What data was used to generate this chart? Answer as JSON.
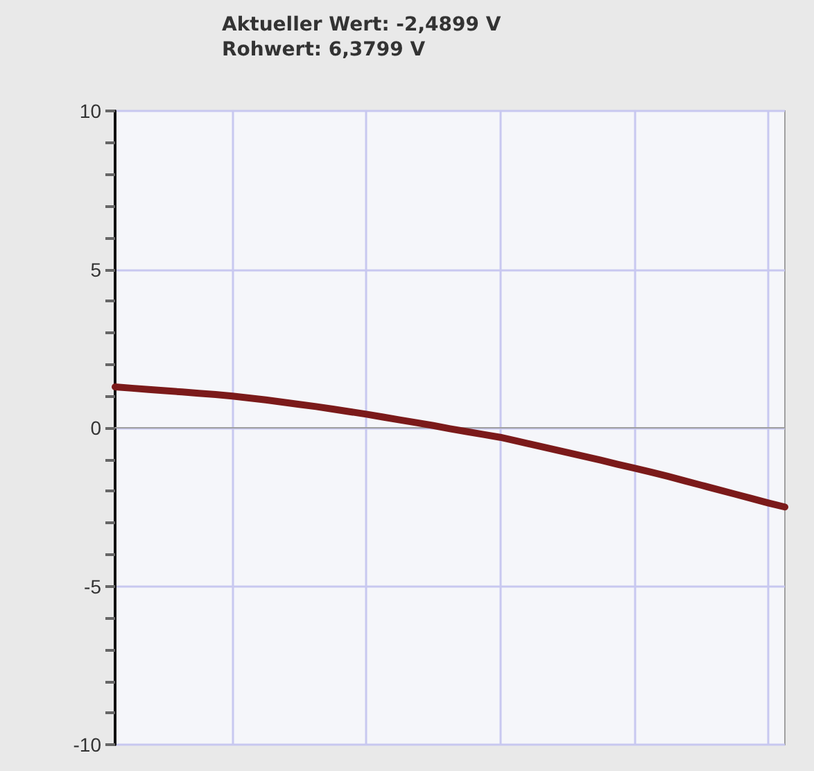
{
  "chart_data": {
    "type": "line",
    "title": "Aktueller Wert: -2,4899 V",
    "subtitle": "Rohwert: 6,3799 V",
    "categories": [
      null,
      null,
      null,
      null,
      null,
      null,
      null,
      null,
      null,
      null,
      null,
      null,
      null,
      null,
      null,
      null,
      null,
      null,
      null,
      null,
      null,
      null,
      null,
      null,
      null,
      null,
      null,
      null,
      null,
      null,
      null,
      null,
      null,
      null,
      null,
      null,
      null,
      null,
      null,
      null,
      null
    ],
    "series": [
      {
        "color": "#7b1a1a",
        "values": [
          1.29,
          1.25,
          1.21,
          1.17,
          1.13,
          1.09,
          1.05,
          1.0,
          0.94,
          0.88,
          0.81,
          0.74,
          0.67,
          0.59,
          0.51,
          0.43,
          0.34,
          0.25,
          0.16,
          0.07,
          -0.03,
          -0.12,
          -0.21,
          -0.3,
          -0.42,
          -0.54,
          -0.66,
          -0.78,
          -0.9,
          -1.02,
          -1.15,
          -1.27,
          -1.4,
          -1.53,
          -1.67,
          -1.81,
          -1.95,
          -2.09,
          -2.23,
          -2.37,
          -2.5
        ]
      }
    ],
    "ylim": [
      -10,
      10
    ],
    "yticks": [
      -10,
      {
        "value": -9,
        "label": null
      },
      {
        "value": -8,
        "label": null
      },
      {
        "value": -7,
        "label": null
      },
      {
        "value": -6,
        "label": null
      },
      -5,
      {
        "value": -4,
        "label": null
      },
      {
        "value": -3,
        "label": null
      },
      {
        "value": -2,
        "label": null
      },
      {
        "value": -1,
        "label": null
      },
      0,
      {
        "value": 1,
        "label": null
      },
      {
        "value": 2,
        "label": null
      },
      {
        "value": 3,
        "label": null
      },
      {
        "value": 4,
        "label": null
      },
      5,
      {
        "value": 6,
        "label": null
      },
      {
        "value": 7,
        "label": null
      },
      {
        "value": 8,
        "label": null
      },
      {
        "value": 9,
        "label": null
      },
      10
    ],
    "tick_labels": "y",
    "grid": true,
    "marker": "none",
    "line_style": "solid"
  }
}
